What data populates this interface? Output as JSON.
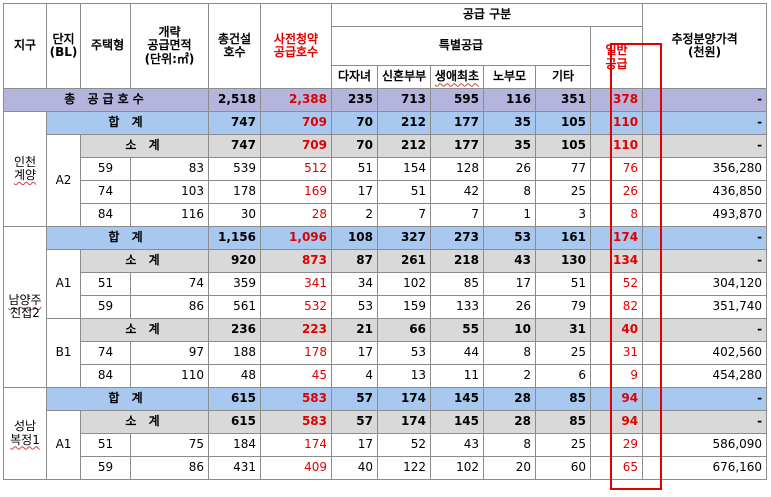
{
  "colors": {
    "total_row": "#b4b4dc",
    "hap_row": "#a9c8f0",
    "sub_row": "#d9d9d9",
    "accent_red": "#e00000"
  },
  "headers": {
    "district": "지구",
    "block": "단지",
    "block_sub": "(BL)",
    "house_type": "주택형",
    "area_1": "개략",
    "area_2": "공급면적",
    "area_3": "(단위:㎡)",
    "total_units_1": "총건설",
    "total_units_2": "호수",
    "pre_units_1": "사전청약",
    "pre_units_2": "공급호수",
    "supply_class": "공급 구분",
    "special_supply": "특별공급",
    "multi_child": "다자녀",
    "newlywed": "신혼부부",
    "first_time": "생애최초",
    "elderly": "노부모",
    "other": "기타",
    "general_1": "일반",
    "general_2": "공급",
    "price_1": "추정분양가격",
    "price_2": "(천원)"
  },
  "grand_total": {
    "label": "총 공급호수",
    "total": "2,518",
    "pre": "2,388",
    "multi_child": "235",
    "newlywed": "713",
    "first_time": "595",
    "elderly": "116",
    "other": "351",
    "general": "378",
    "price": "-"
  },
  "sum_label": "합 계",
  "subtotal_label": "소 계",
  "incheon": {
    "district_1": "인천",
    "district_2": "계양",
    "sum": {
      "total": "747",
      "pre": "709",
      "multi_child": "70",
      "newlywed": "212",
      "first_time": "177",
      "elderly": "35",
      "other": "105",
      "general": "110",
      "price": "-"
    },
    "block": "A2",
    "sub": {
      "total": "747",
      "pre": "709",
      "multi_child": "70",
      "newlywed": "212",
      "first_time": "177",
      "elderly": "35",
      "other": "105",
      "general": "110",
      "price": "-"
    },
    "rows": [
      {
        "type": "59",
        "area": "83",
        "total": "539",
        "pre": "512",
        "multi_child": "51",
        "newlywed": "154",
        "first_time": "128",
        "elderly": "26",
        "other": "77",
        "general": "76",
        "price": "356,280"
      },
      {
        "type": "74",
        "area": "103",
        "total": "178",
        "pre": "169",
        "multi_child": "17",
        "newlywed": "51",
        "first_time": "42",
        "elderly": "8",
        "other": "25",
        "general": "26",
        "price": "436,850"
      },
      {
        "type": "84",
        "area": "116",
        "total": "30",
        "pre": "28",
        "multi_child": "2",
        "newlywed": "7",
        "first_time": "7",
        "elderly": "1",
        "other": "3",
        "general": "8",
        "price": "493,870"
      }
    ]
  },
  "namyangju": {
    "district_1": "남양주",
    "district_2": "진접2",
    "sum": {
      "total": "1,156",
      "pre": "1,096",
      "multi_child": "108",
      "newlywed": "327",
      "first_time": "273",
      "elderly": "53",
      "other": "161",
      "general": "174",
      "price": "-"
    },
    "a1": {
      "block": "A1",
      "sub": {
        "total": "920",
        "pre": "873",
        "multi_child": "87",
        "newlywed": "261",
        "first_time": "218",
        "elderly": "43",
        "other": "130",
        "general": "134",
        "price": "-"
      },
      "rows": [
        {
          "type": "51",
          "area": "74",
          "total": "359",
          "pre": "341",
          "multi_child": "34",
          "newlywed": "102",
          "first_time": "85",
          "elderly": "17",
          "other": "51",
          "general": "52",
          "price": "304,120"
        },
        {
          "type": "59",
          "area": "86",
          "total": "561",
          "pre": "532",
          "multi_child": "53",
          "newlywed": "159",
          "first_time": "133",
          "elderly": "26",
          "other": "79",
          "general": "82",
          "price": "351,740"
        }
      ]
    },
    "b1": {
      "block": "B1",
      "sub": {
        "total": "236",
        "pre": "223",
        "multi_child": "21",
        "newlywed": "66",
        "first_time": "55",
        "elderly": "10",
        "other": "31",
        "general": "40",
        "price": "-"
      },
      "rows": [
        {
          "type": "74",
          "area": "97",
          "total": "188",
          "pre": "178",
          "multi_child": "17",
          "newlywed": "53",
          "first_time": "44",
          "elderly": "8",
          "other": "25",
          "general": "31",
          "price": "402,560"
        },
        {
          "type": "84",
          "area": "110",
          "total": "48",
          "pre": "45",
          "multi_child": "4",
          "newlywed": "13",
          "first_time": "11",
          "elderly": "2",
          "other": "6",
          "general": "9",
          "price": "454,280"
        }
      ]
    }
  },
  "seongnam": {
    "district_1": "성남",
    "district_2": "복정1",
    "sum": {
      "total": "615",
      "pre": "583",
      "multi_child": "57",
      "newlywed": "174",
      "first_time": "145",
      "elderly": "28",
      "other": "85",
      "general": "94",
      "price": "-"
    },
    "block": "A1",
    "sub": {
      "total": "615",
      "pre": "583",
      "multi_child": "57",
      "newlywed": "174",
      "first_time": "145",
      "elderly": "28",
      "other": "85",
      "general": "94",
      "price": "-"
    },
    "rows": [
      {
        "type": "51",
        "area": "75",
        "total": "184",
        "pre": "174",
        "multi_child": "17",
        "newlywed": "52",
        "first_time": "43",
        "elderly": "8",
        "other": "25",
        "general": "29",
        "price": "586,090"
      },
      {
        "type": "59",
        "area": "86",
        "total": "431",
        "pre": "409",
        "multi_child": "40",
        "newlywed": "122",
        "first_time": "102",
        "elderly": "20",
        "other": "60",
        "general": "65",
        "price": "676,160"
      }
    ]
  }
}
